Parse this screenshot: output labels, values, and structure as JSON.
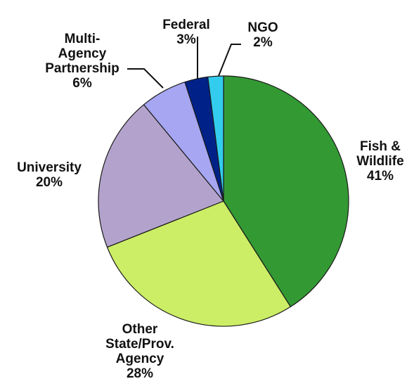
{
  "chart_data": {
    "type": "pie",
    "slices": [
      {
        "name": "Fish & Wildlife",
        "label_lines": [
          "Fish &",
          "Wildlife"
        ],
        "value": 41,
        "value_label": "41%",
        "color": "#339933"
      },
      {
        "name": "Other State/Prov. Agency",
        "label_lines": [
          "Other",
          "State/Prov.",
          "Agency"
        ],
        "value": 28,
        "value_label": "28%",
        "color": "#ccee66"
      },
      {
        "name": "University",
        "label_lines": [
          "University"
        ],
        "value": 20,
        "value_label": "20%",
        "color": "#b3a3cc"
      },
      {
        "name": "Multi-Agency Partnership",
        "label_lines": [
          "Multi-",
          "Agency",
          "Partnership"
        ],
        "value": 6,
        "value_label": "6%",
        "color": "#a6a6f2"
      },
      {
        "name": "Federal",
        "label_lines": [
          "Federal"
        ],
        "value": 3,
        "value_label": "3%",
        "color": "#002288"
      },
      {
        "name": "NGO",
        "label_lines": [
          "NGO"
        ],
        "value": 2,
        "value_label": "2%",
        "color": "#33ccee"
      }
    ],
    "start_angle_deg": 0,
    "direction": "clockwise"
  }
}
